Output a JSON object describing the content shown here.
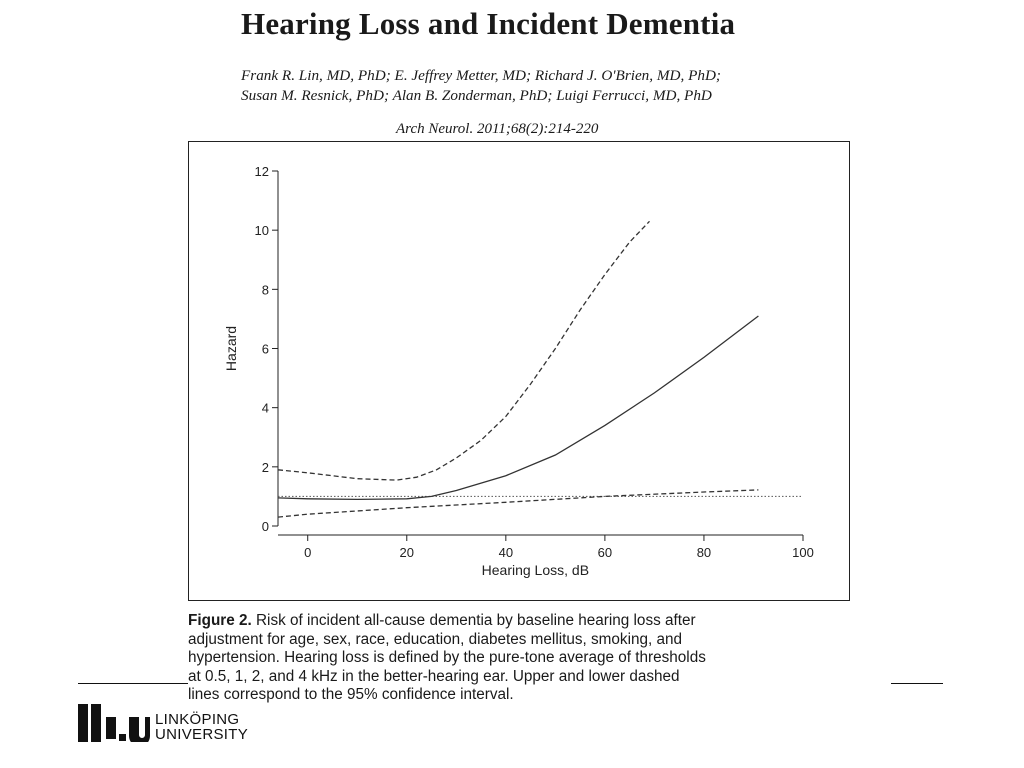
{
  "slide": {
    "title": "Hearing Loss and Incident Dementia",
    "authors_line1": "Frank R. Lin, MD, PhD; E. Jeffrey Metter, MD; Richard J. O'Brien, MD, PhD;",
    "authors_line2": "Susan M. Resnick, PhD; Alan B. Zonderman, PhD; Luigi Ferrucci, MD, PhD",
    "citation": "Arch Neurol. 2011;68(2):214-220",
    "caption_label": "Figure 2.",
    "caption_text": " Risk of incident all-cause dementia by baseline hearing loss after\nadjustment for age, sex, race, education, diabetes mellitus, smoking, and\nhypertension. Hearing loss is defined by the pure-tone average of thresholds\nat 0.5, 1, 2, and 4 kHz in the better-hearing ear. Upper and lower dashed\nlines correspond to the 95% confidence interval.",
    "logo_line1": "LINKÖPING",
    "logo_line2": "UNIVERSITY"
  },
  "chart_data": {
    "type": "line",
    "title": "",
    "xlabel": "Hearing Loss, dB",
    "ylabel": "Hazard",
    "xlim": [
      -6,
      100
    ],
    "ylim": [
      0,
      12
    ],
    "x_ticks": [
      0,
      20,
      40,
      60,
      80,
      100
    ],
    "y_ticks": [
      0,
      2,
      4,
      6,
      8,
      10,
      12
    ],
    "grid": false,
    "legend": "none",
    "reference_line": 1,
    "series": [
      {
        "style": "solid",
        "x": [
          -6,
          0,
          10,
          20,
          25,
          30,
          40,
          50,
          60,
          70,
          80,
          91
        ],
        "y": [
          0.95,
          0.92,
          0.9,
          0.92,
          1.0,
          1.2,
          1.7,
          2.4,
          3.4,
          4.5,
          5.7,
          7.1
        ]
      },
      {
        "style": "dashed",
        "x": [
          -6,
          0,
          10,
          18,
          22,
          26,
          30,
          35,
          40,
          45,
          50,
          55,
          60,
          65,
          69
        ],
        "y": [
          1.9,
          1.8,
          1.6,
          1.55,
          1.65,
          1.9,
          2.3,
          2.9,
          3.7,
          4.8,
          6.0,
          7.3,
          8.5,
          9.6,
          10.3
        ]
      },
      {
        "style": "dashed",
        "x": [
          -6,
          0,
          20,
          40,
          60,
          80,
          91
        ],
        "y": [
          0.3,
          0.4,
          0.62,
          0.8,
          1.0,
          1.15,
          1.22
        ]
      }
    ]
  }
}
